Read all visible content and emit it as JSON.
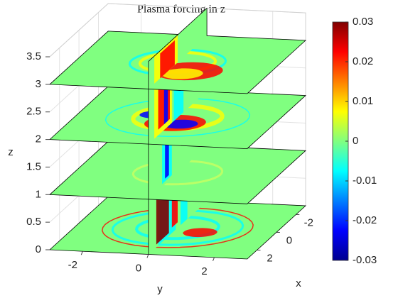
{
  "chart_data": {
    "type": "slice3d",
    "title": "Plasma forcing in z",
    "xlabel": "x",
    "ylabel": "y",
    "zlabel": "z",
    "xlim": [
      -3,
      3
    ],
    "ylim": [
      -3,
      3
    ],
    "zlim": [
      0,
      3.5
    ],
    "xticks": [
      -2,
      0,
      2
    ],
    "yticks": [
      -2,
      0,
      2
    ],
    "zticks": [
      0,
      0.5,
      1,
      1.5,
      2,
      2.5,
      3,
      3.5
    ],
    "z_slices": [
      0,
      1,
      2,
      3
    ],
    "y_slice": 0,
    "clim": [
      -0.03,
      0.03
    ],
    "cticks": [
      -0.03,
      -0.02,
      -0.01,
      0,
      0.01,
      0.02,
      0.03
    ],
    "colormap": "jet",
    "grid": true
  }
}
